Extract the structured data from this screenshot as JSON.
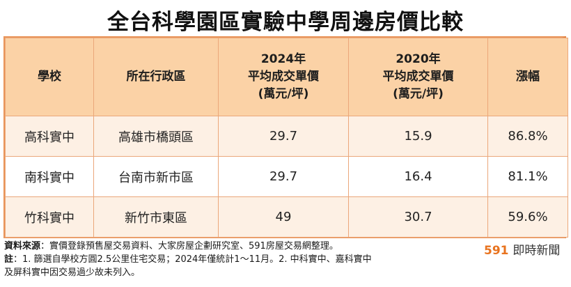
{
  "title": "全台科學園區實驗中學周邊房價比較",
  "table": {
    "headers": [
      {
        "lines": [
          "學校"
        ]
      },
      {
        "lines": [
          "所在行政區"
        ]
      },
      {
        "lines": [
          "2024年",
          "平均成交單價",
          "(萬元/坪)"
        ]
      },
      {
        "lines": [
          "2020年",
          "平均成交單價",
          "(萬元/坪)"
        ]
      },
      {
        "lines": [
          "漲幅"
        ]
      }
    ],
    "rows": [
      [
        "高科實中",
        "高雄市橋頭區",
        "29.7",
        "15.9",
        "86.8%"
      ],
      [
        "南科實中",
        "台南市新市區",
        "29.7",
        "16.4",
        "81.1%"
      ],
      [
        "竹科實中",
        "新竹市東區",
        "49",
        "30.7",
        "59.6%"
      ]
    ]
  },
  "notes": {
    "source_label": "資料來源",
    "source_text": "：實價登錄預售屋交易資料、大家房屋企劃研究室、591房屋交易網整理。",
    "note_label": "註",
    "note_line1": "：1. 篩選自學校方圓2.5公里住宅交易；2024年僅統計1～11月。2. 中科實中、嘉科實中",
    "note_line2": "及屏科實中因交易過少故未列入。"
  },
  "brand": {
    "number": "591",
    "text": "即時新聞"
  }
}
